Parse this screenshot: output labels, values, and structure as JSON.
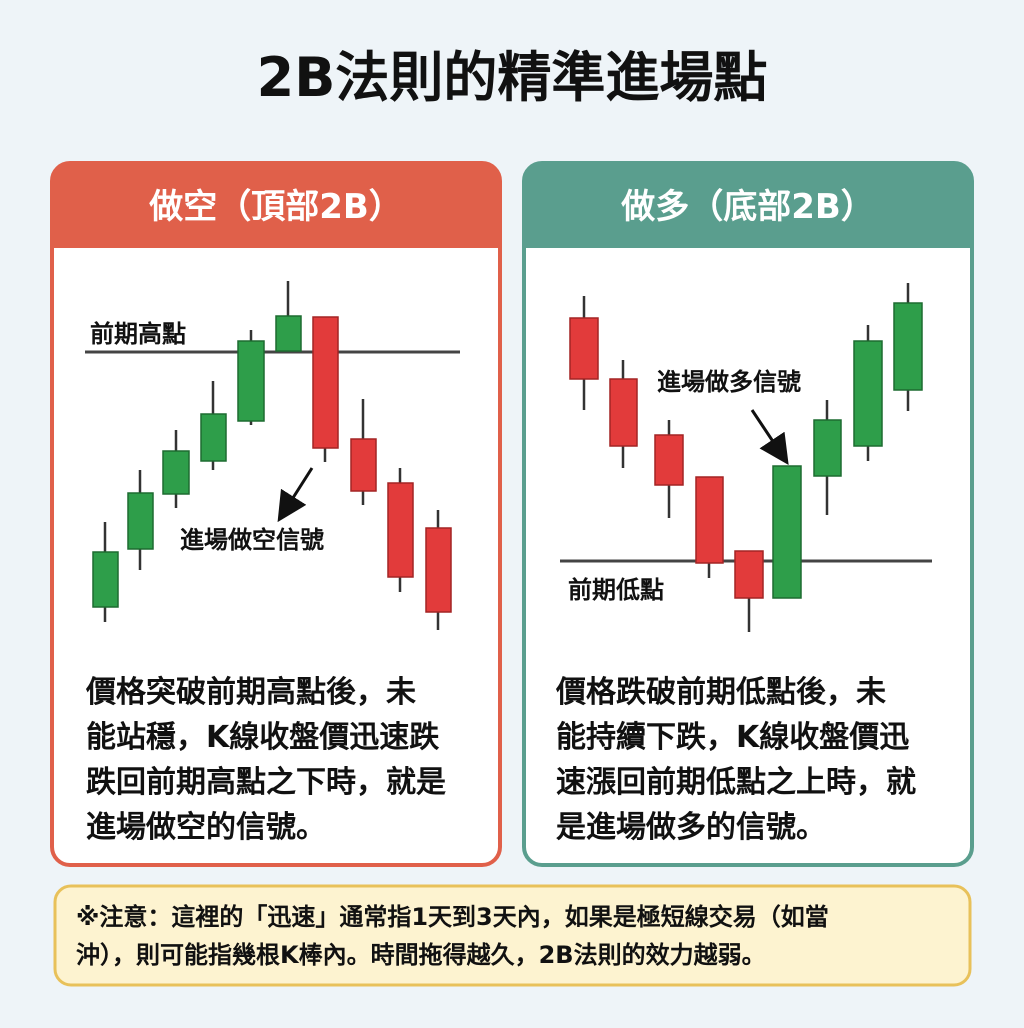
{
  "title": "2B法則的精準進場點",
  "panels": [
    {
      "header": "做空（頂部2B）",
      "level_label": "前期高點",
      "signal_label": "進場做空信號",
      "body": [
        "價格突破前期高點後，未",
        "能站穩，K線收盤價迅速跌",
        "跌回前期高點之下時，就是",
        "進場做空的信號。"
      ]
    },
    {
      "header": "做多（底部2B）",
      "level_label": "前期低點",
      "signal_label": "進場做多信號",
      "body": [
        "價格跌破前期低點後，未",
        "能持續下跌，K線收盤價迅",
        "速漲回前期低點之上時，就",
        "是進場做多的信號。"
      ]
    }
  ],
  "note": [
    "※注意：這裡的「迅速」通常指1天到3天內，如果是極短線交易（如當",
    "沖），則可能指幾根K棒內。時間拖得越久，2B法則的效力越弱。"
  ]
}
